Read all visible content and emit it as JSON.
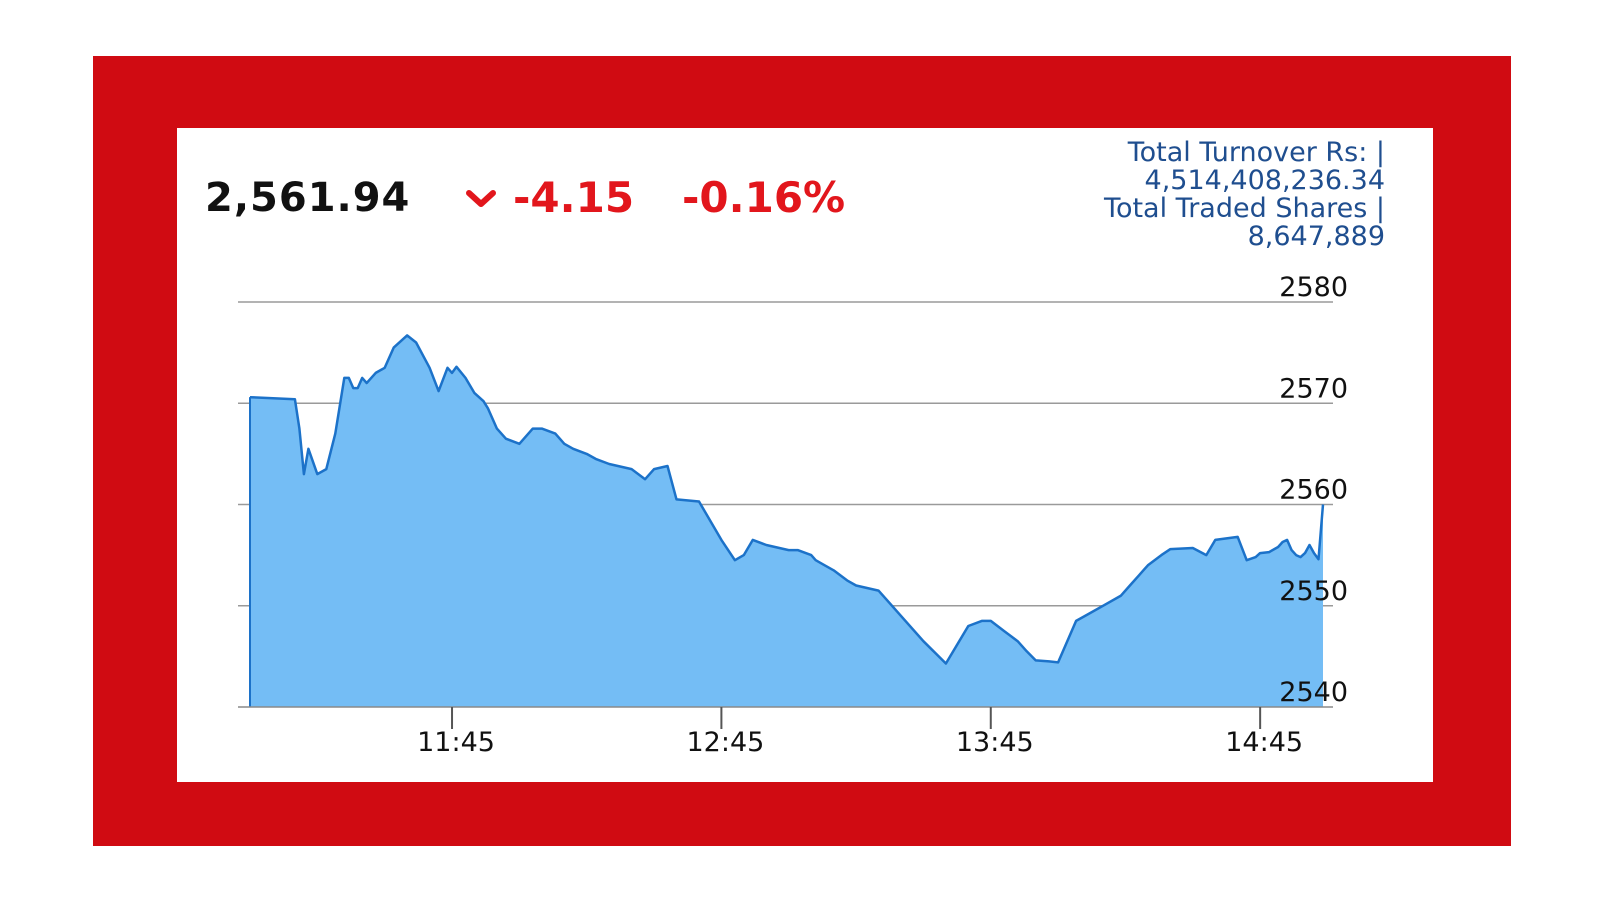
{
  "header": {
    "price": "2,561.94",
    "change": "-4.15",
    "change_pct": "-0.16%",
    "change_icon": "chevron-down-icon",
    "turnover_label": "Total Turnover Rs: |",
    "turnover_value": "4,514,408,236.34",
    "shares_label": "Total Traded Shares |",
    "shares_value": "8,647,889"
  },
  "colors": {
    "frame": "#d00b12",
    "down": "#e2161c",
    "stats_text": "#1f4e8f",
    "area_fill": "#74bdf5",
    "area_line": "#1c72c9"
  },
  "chart_data": {
    "type": "area",
    "title": "",
    "xlabel": "",
    "ylabel": "",
    "x_ticks": [
      "11:45",
      "12:45",
      "13:45",
      "14:45"
    ],
    "y_ticks": [
      2580,
      2570,
      2560,
      2550,
      2540
    ],
    "ylim": [
      2540,
      2580
    ],
    "xlim": [
      "11:00",
      "14:59"
    ],
    "grid": true,
    "x": [
      "11:00",
      "11:10",
      "11:11",
      "11:12",
      "11:13",
      "11:15",
      "11:17",
      "11:19",
      "11:21",
      "11:22",
      "11:23",
      "11:24",
      "11:25",
      "11:26",
      "11:28",
      "11:30",
      "11:32",
      "11:35",
      "11:37",
      "11:40",
      "11:42",
      "11:44",
      "11:45",
      "11:46",
      "11:48",
      "11:50",
      "11:52",
      "11:53",
      "11:55",
      "11:57",
      "12:00",
      "12:03",
      "12:05",
      "12:08",
      "12:10",
      "12:12",
      "12:15",
      "12:17",
      "12:20",
      "12:25",
      "12:28",
      "12:30",
      "12:33",
      "12:35",
      "12:40",
      "12:45",
      "12:48",
      "12:50",
      "12:52",
      "12:55",
      "13:00",
      "13:02",
      "13:05",
      "13:06",
      "13:08",
      "13:10",
      "13:13",
      "13:15",
      "13:20",
      "13:25",
      "13:30",
      "13:35",
      "13:40",
      "13:43",
      "13:45",
      "13:48",
      "13:51",
      "13:53",
      "13:55",
      "13:58",
      "14:00",
      "14:04",
      "14:06",
      "14:10",
      "14:14",
      "14:16",
      "14:18",
      "14:20",
      "14:23",
      "14:25",
      "14:30",
      "14:33",
      "14:35",
      "14:40",
      "14:42",
      "14:44",
      "14:45",
      "14:47",
      "14:49",
      "14:50",
      "14:51",
      "14:52",
      "14:53",
      "14:54",
      "14:55",
      "14:56",
      "14:57",
      "14:58",
      "14:59"
    ],
    "series": [
      {
        "values": [
          2570.6,
          2570.4,
          2567.5,
          2563.0,
          2565.5,
          2563.0,
          2563.5,
          2567.0,
          2572.5,
          2572.5,
          2571.5,
          2571.5,
          2572.5,
          2572.0,
          2573.0,
          2573.5,
          2575.5,
          2576.7,
          2576.0,
          2573.5,
          2571.2,
          2573.5,
          2573.0,
          2573.6,
          2572.5,
          2571.0,
          2570.2,
          2569.5,
          2567.5,
          2566.5,
          2566.0,
          2567.5,
          2567.5,
          2567.0,
          2566.0,
          2565.5,
          2565.0,
          2564.5,
          2564.0,
          2563.5,
          2562.5,
          2563.5,
          2563.8,
          2560.5,
          2560.3,
          2556.5,
          2554.5,
          2555.0,
          2556.5,
          2556.0,
          2555.5,
          2555.5,
          2555.0,
          2554.5,
          2554.0,
          2553.5,
          2552.5,
          2552.0,
          2551.5,
          2549.0,
          2546.5,
          2544.3,
          2548.0,
          2548.5,
          2548.5,
          2547.5,
          2546.5,
          2545.5,
          2544.6,
          2544.5,
          2544.4,
          2548.5,
          2549.0,
          2550.0,
          2551.0,
          2552.0,
          2553.0,
          2554.0,
          2555.0,
          2555.6,
          2555.7,
          2555.0,
          2556.5,
          2556.8,
          2554.5,
          2554.8,
          2555.2,
          2555.3,
          2555.8,
          2556.3,
          2556.5,
          2555.5,
          2555.0,
          2554.8,
          2555.2,
          2556.0,
          2555.2,
          2554.6,
          2560.0
        ]
      }
    ]
  }
}
